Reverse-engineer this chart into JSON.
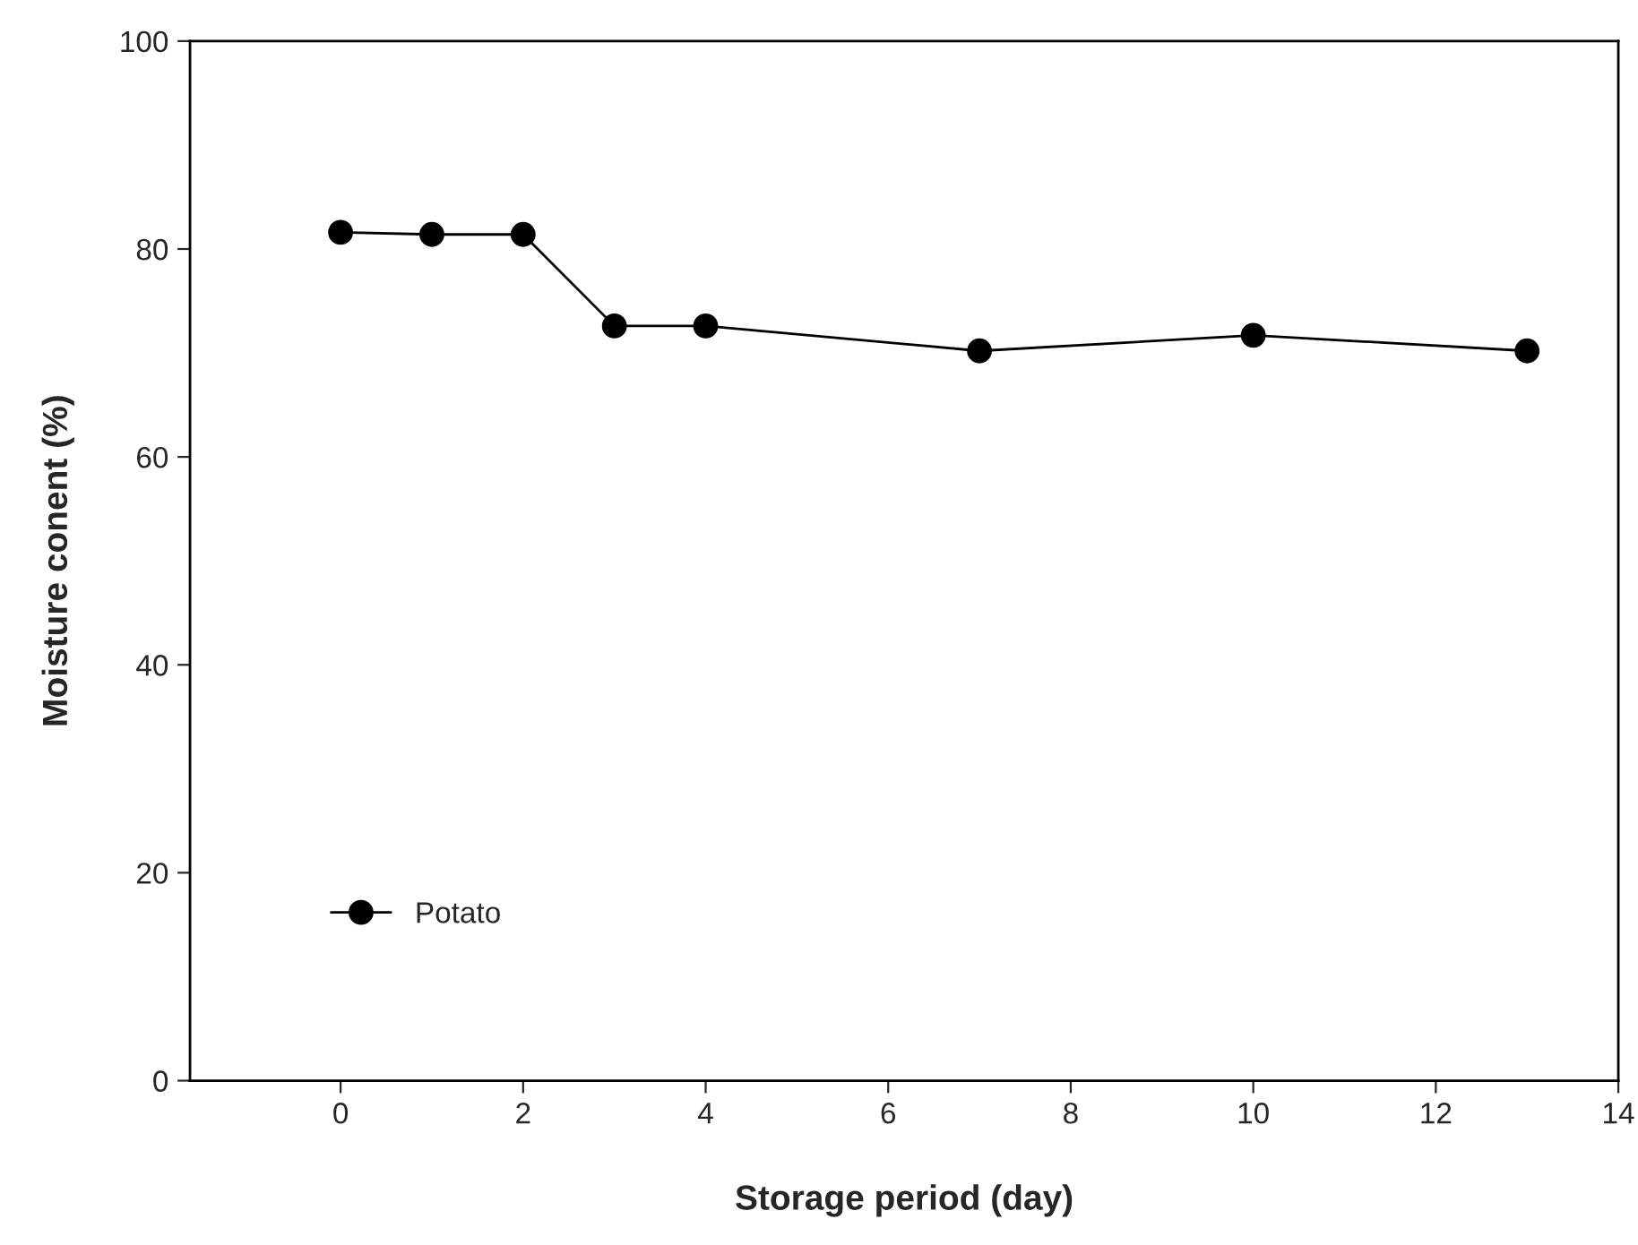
{
  "chart_data": {
    "type": "line",
    "xlabel": "Storage period (day)",
    "ylabel": "Moisture conent (%)",
    "x": [
      0,
      1,
      2,
      3,
      4,
      7,
      10,
      13
    ],
    "series": [
      {
        "name": "Potato",
        "color": "#000000",
        "values": [
          81.6,
          81.4,
          81.4,
          72.6,
          72.6,
          70.2,
          71.7,
          70.2
        ]
      }
    ],
    "xlim": [
      -1.65,
      14
    ],
    "xticks": [
      0,
      2,
      4,
      6,
      8,
      10,
      12,
      14
    ],
    "ylim": [
      0,
      100
    ],
    "yticks": [
      0,
      20,
      40,
      60,
      80,
      100
    ],
    "marker": "circle",
    "line_style": "solid",
    "legend": "bottom left",
    "grid": false
  }
}
